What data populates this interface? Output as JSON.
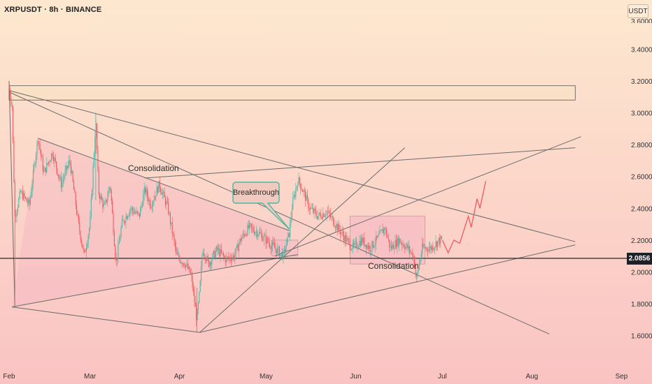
{
  "header": {
    "symbol_title": "XRPUSDT · 8h · BINANCE",
    "currency": "USDT"
  },
  "current_price_label": "2.0856",
  "colors": {
    "bg_top": "#fde8cf",
    "bg_bottom": "#fac3c3",
    "up": "#4cb7a3",
    "down": "#f05a60",
    "line": "#6b6b6b",
    "zone_fill": "#f3b0c0",
    "callout_fill": "#f0cabe",
    "callout_border": "#4cb7a3"
  },
  "chart_data": {
    "type": "candlestick",
    "title": "XRPUSDT · 8h · BINANCE",
    "ylim": [
      1.4,
      3.5
    ],
    "y_ticks": [
      "1.6000",
      "1.8000",
      "2.0000",
      "2.2000",
      "2.4000",
      "2.6000",
      "2.8000",
      "3.0000",
      "3.2000",
      "3.4000"
    ],
    "x_ticks": [
      "Feb",
      "Mar",
      "Apr",
      "May",
      "Jun",
      "Jul",
      "Aug",
      "Sep"
    ],
    "current_price": 2.0856,
    "price_path": [
      [
        "2025-02-01",
        3.15
      ],
      [
        "2025-02-02",
        3.05
      ],
      [
        "2025-02-03",
        2.35
      ],
      [
        "2025-02-05",
        2.5
      ],
      [
        "2025-02-08",
        2.42
      ],
      [
        "2025-02-11",
        2.85
      ],
      [
        "2025-02-13",
        2.62
      ],
      [
        "2025-02-16",
        2.75
      ],
      [
        "2025-02-19",
        2.55
      ],
      [
        "2025-02-22",
        2.7
      ],
      [
        "2025-02-25",
        2.3
      ],
      [
        "2025-02-27",
        2.1
      ],
      [
        "2025-03-01",
        2.3
      ],
      [
        "2025-03-03",
        2.95
      ],
      [
        "2025-03-04",
        2.5
      ],
      [
        "2025-03-06",
        2.4
      ],
      [
        "2025-03-08",
        2.55
      ],
      [
        "2025-03-10",
        2.05
      ],
      [
        "2025-03-12",
        2.3
      ],
      [
        "2025-03-15",
        2.4
      ],
      [
        "2025-03-18",
        2.35
      ],
      [
        "2025-03-20",
        2.52
      ],
      [
        "2025-03-22",
        2.42
      ],
      [
        "2025-03-25",
        2.55
      ],
      [
        "2025-03-28",
        2.4
      ],
      [
        "2025-03-31",
        2.1
      ],
      [
        "2025-04-03",
        2.05
      ],
      [
        "2025-04-05",
        1.98
      ],
      [
        "2025-04-07",
        1.7
      ],
      [
        "2025-04-08",
        1.88
      ],
      [
        "2025-04-09",
        2.15
      ],
      [
        "2025-04-11",
        2.05
      ],
      [
        "2025-04-14",
        2.14
      ],
      [
        "2025-04-17",
        2.08
      ],
      [
        "2025-04-20",
        2.1
      ],
      [
        "2025-04-22",
        2.2
      ],
      [
        "2025-04-25",
        2.28
      ],
      [
        "2025-04-28",
        2.25
      ],
      [
        "2025-05-01",
        2.2
      ],
      [
        "2025-05-04",
        2.15
      ],
      [
        "2025-05-07",
        2.1
      ],
      [
        "2025-05-09",
        2.25
      ],
      [
        "2025-05-10",
        2.42
      ],
      [
        "2025-05-12",
        2.58
      ],
      [
        "2025-05-14",
        2.5
      ],
      [
        "2025-05-16",
        2.4
      ],
      [
        "2025-05-19",
        2.35
      ],
      [
        "2025-05-22",
        2.38
      ],
      [
        "2025-05-25",
        2.3
      ],
      [
        "2025-05-28",
        2.22
      ],
      [
        "2025-05-31",
        2.15
      ],
      [
        "2025-06-03",
        2.2
      ],
      [
        "2025-06-06",
        2.15
      ],
      [
        "2025-06-09",
        2.22
      ],
      [
        "2025-06-11",
        2.28
      ],
      [
        "2025-06-13",
        2.15
      ],
      [
        "2025-06-16",
        2.2
      ],
      [
        "2025-06-19",
        2.15
      ],
      [
        "2025-06-21",
        2.1
      ],
      [
        "2025-06-22",
        1.95
      ],
      [
        "2025-06-24",
        2.15
      ],
      [
        "2025-06-27",
        2.15
      ],
      [
        "2025-06-30",
        2.2
      ],
      [
        "2025-07-01",
        2.2
      ]
    ],
    "projection": [
      [
        "2025-07-01",
        2.2
      ],
      [
        "2025-07-03",
        2.12
      ],
      [
        "2025-07-05",
        2.2
      ],
      [
        "2025-07-07",
        2.18
      ],
      [
        "2025-07-10",
        2.35
      ],
      [
        "2025-07-11",
        2.28
      ],
      [
        "2025-07-13",
        2.46
      ],
      [
        "2025-07-14",
        2.4
      ],
      [
        "2025-07-16",
        2.57
      ]
    ],
    "annotations": [
      "Consolidation",
      "Breakthrough",
      "Consolidation"
    ]
  },
  "annotations": {
    "consolidation_1": "Consolidation",
    "breakthrough": "Breakthrough",
    "consolidation_2": "Consolidation"
  }
}
